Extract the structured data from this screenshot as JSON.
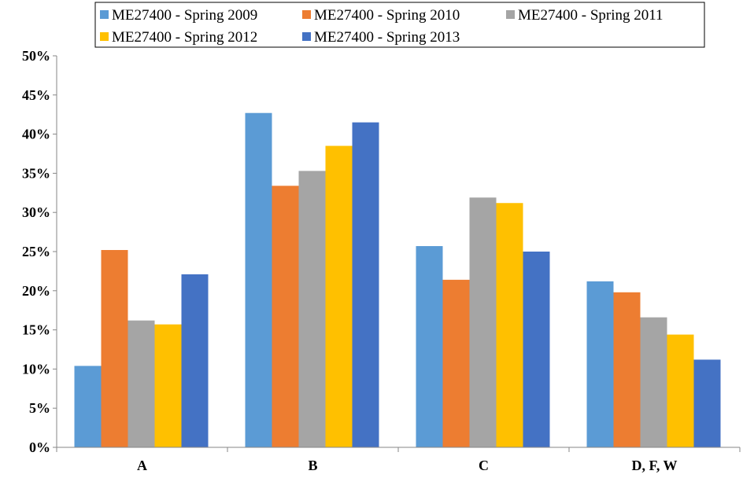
{
  "chart_data": {
    "type": "bar",
    "title": "",
    "xlabel": "",
    "ylabel": "",
    "ylim": [
      0,
      0.5
    ],
    "y_tick_format": "percent",
    "y_ticks": [
      "0%",
      "5%",
      "10%",
      "15%",
      "20%",
      "25%",
      "30%",
      "35%",
      "40%",
      "45%",
      "50%"
    ],
    "grid": false,
    "legend_position": "top",
    "categories": [
      "A",
      "B",
      "C",
      "D, F, W"
    ],
    "series": [
      {
        "name": "ME27400 - Spring 2009",
        "color": "#5B9BD5",
        "values": [
          0.104,
          0.427,
          0.257,
          0.212
        ]
      },
      {
        "name": "ME27400 - Spring 2010",
        "color": "#ED7D31",
        "values": [
          0.252,
          0.334,
          0.214,
          0.198
        ]
      },
      {
        "name": "ME27400 - Spring 2011",
        "color": "#A5A5A5",
        "values": [
          0.162,
          0.353,
          0.319,
          0.166
        ]
      },
      {
        "name": "ME27400 - Spring 2012",
        "color": "#FFC000",
        "values": [
          0.157,
          0.385,
          0.312,
          0.144
        ]
      },
      {
        "name": "ME27400 - Spring 2013",
        "color": "#4472C4",
        "values": [
          0.221,
          0.415,
          0.25,
          0.112
        ]
      }
    ]
  }
}
